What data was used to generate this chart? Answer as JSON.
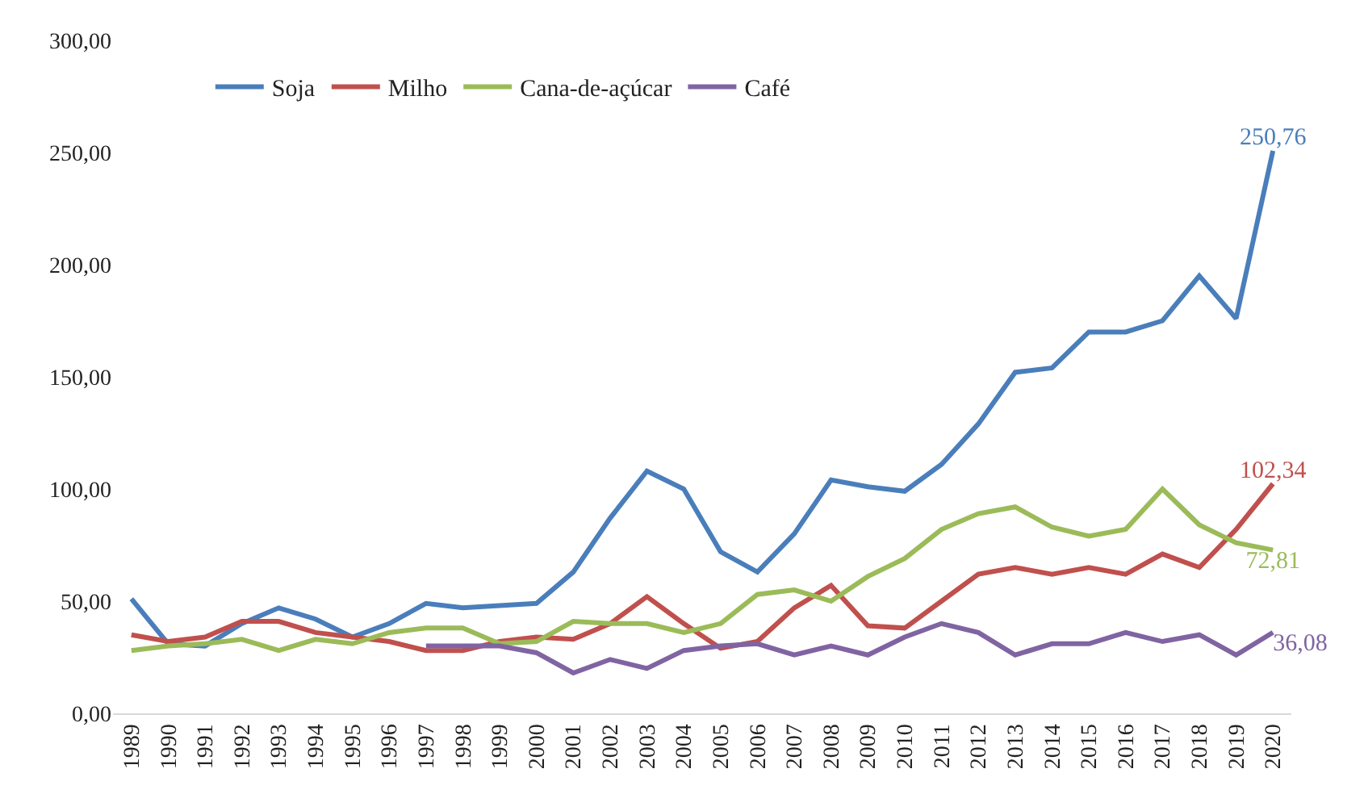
{
  "chart_data": {
    "type": "line",
    "categories": [
      "1989",
      "1990",
      "1991",
      "1992",
      "1993",
      "1994",
      "1995",
      "1996",
      "1997",
      "1998",
      "1999",
      "2000",
      "2001",
      "2002",
      "2003",
      "2004",
      "2005",
      "2006",
      "2007",
      "2008",
      "2009",
      "2010",
      "2011",
      "2012",
      "2013",
      "2014",
      "2015",
      "2016",
      "2017",
      "2018",
      "2019",
      "2020"
    ],
    "series": [
      {
        "name": "Soja",
        "color": "#4a7ebb",
        "values": [
          51,
          31,
          30,
          40,
          47,
          42,
          34,
          40,
          49,
          47,
          48,
          49,
          63,
          87,
          108,
          100,
          72,
          63,
          80,
          104,
          101,
          99,
          111,
          129,
          152,
          154,
          170,
          170,
          175,
          195,
          176,
          250.76
        ],
        "value_labels": [
          null,
          null,
          null,
          null,
          null,
          null,
          null,
          null,
          null,
          null,
          null,
          null,
          null,
          null,
          null,
          null,
          null,
          null,
          null,
          null,
          null,
          null,
          null,
          null,
          null,
          null,
          null,
          null,
          null,
          null,
          null,
          "250,76"
        ]
      },
      {
        "name": "Milho",
        "color": "#c0504d",
        "values": [
          35,
          32,
          34,
          41,
          41,
          36,
          34,
          32,
          28,
          28,
          32,
          34,
          33,
          40,
          52,
          40,
          29,
          32,
          47,
          57,
          39,
          38,
          50,
          62,
          65,
          62,
          65,
          62,
          71,
          65,
          82,
          102.34
        ],
        "value_labels": [
          null,
          null,
          null,
          null,
          null,
          null,
          null,
          null,
          null,
          null,
          null,
          null,
          null,
          null,
          null,
          null,
          null,
          null,
          null,
          null,
          null,
          null,
          null,
          null,
          null,
          null,
          null,
          null,
          null,
          null,
          null,
          "102,34"
        ]
      },
      {
        "name": "Cana-de-açúcar",
        "color": "#9bbb59",
        "values": [
          28,
          30,
          31,
          33,
          28,
          33,
          31,
          36,
          38,
          38,
          31,
          32,
          41,
          40,
          40,
          36,
          40,
          53,
          55,
          50,
          61,
          69,
          82,
          89,
          92,
          83,
          79,
          82,
          100,
          84,
          76,
          72.81
        ],
        "value_labels": [
          null,
          null,
          null,
          null,
          null,
          null,
          null,
          null,
          null,
          null,
          null,
          null,
          null,
          null,
          null,
          null,
          null,
          null,
          null,
          null,
          null,
          null,
          null,
          null,
          null,
          null,
          null,
          null,
          null,
          null,
          null,
          "72,81"
        ]
      },
      {
        "name": "Café",
        "color": "#8064a2",
        "values": [
          null,
          null,
          null,
          null,
          null,
          null,
          null,
          null,
          30,
          30,
          30,
          27,
          18,
          24,
          20,
          28,
          30,
          31,
          26,
          30,
          26,
          34,
          40,
          36,
          26,
          31,
          31,
          36,
          32,
          35,
          26,
          36.08
        ],
        "value_labels": [
          null,
          null,
          null,
          null,
          null,
          null,
          null,
          null,
          null,
          null,
          null,
          null,
          null,
          null,
          null,
          null,
          null,
          null,
          null,
          null,
          null,
          null,
          null,
          null,
          null,
          null,
          null,
          null,
          null,
          null,
          null,
          "36,08"
        ]
      }
    ],
    "ylim": [
      0,
      300
    ],
    "yticks": [
      {
        "value": 0,
        "label": "0,00"
      },
      {
        "value": 50,
        "label": "50,00"
      },
      {
        "value": 100,
        "label": "100,00"
      },
      {
        "value": 150,
        "label": "150,00"
      },
      {
        "value": 200,
        "label": "200,00"
      },
      {
        "value": 250,
        "label": "250,00"
      },
      {
        "value": 300,
        "label": "300,00"
      }
    ],
    "legend": "top",
    "marker": "none",
    "line_style": "solid"
  }
}
